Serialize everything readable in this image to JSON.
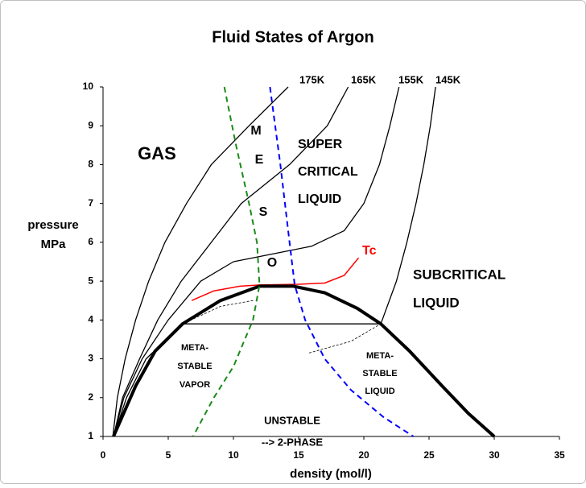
{
  "chart_data": {
    "type": "line",
    "title": "Fluid States of Argon",
    "x_label": "density (mol/l)",
    "y_label": [
      "pressure",
      "MPa"
    ],
    "xlim": [
      0,
      35
    ],
    "xticks": [
      0,
      5,
      10,
      15,
      20,
      25,
      30,
      35
    ],
    "ylim": [
      1,
      10
    ],
    "yticks": [
      1,
      2,
      3,
      4,
      5,
      6,
      7,
      8,
      9,
      10
    ],
    "series": [
      {
        "name": "175K",
        "color": "#000000",
        "width": 1.3,
        "dash": false,
        "x": [
          0.75,
          1.1,
          1.7,
          2.5,
          3.5,
          4.75,
          6.4,
          8.3,
          11.2,
          14.2
        ],
        "y": [
          1,
          2,
          3,
          4,
          5,
          6,
          7,
          8,
          9,
          10
        ]
      },
      {
        "name": "165K",
        "color": "#000000",
        "width": 1.3,
        "dash": false,
        "x": [
          0.8,
          1.5,
          2.8,
          4.2,
          6,
          8.3,
          10.6,
          14.3,
          17.2,
          18.8
        ],
        "y": [
          1,
          2,
          3,
          4,
          5,
          6,
          7,
          8,
          9,
          10
        ]
      },
      {
        "name": "155K",
        "color": "#000000",
        "width": 1.3,
        "dash": false,
        "x": [
          0.8,
          1.6,
          3,
          5,
          7.5,
          10,
          13,
          16,
          18.5,
          20,
          21.2,
          22,
          22.7
        ],
        "y": [
          1,
          2,
          3,
          4,
          5,
          5.5,
          5.7,
          5.9,
          6.3,
          7,
          8,
          9,
          10
        ]
      },
      {
        "name": "145K",
        "color": "#000000",
        "width": 1.3,
        "dash": false,
        "x": [
          0.8,
          1.8,
          3.3,
          6.1,
          21.3,
          22.5,
          23.3,
          24,
          24.6,
          25.1,
          25.5
        ],
        "y": [
          1,
          2,
          3,
          3.9,
          3.9,
          5,
          6,
          7,
          8,
          9,
          10
        ]
      },
      {
        "name": "Tc",
        "color": "#ff0000",
        "width": 1.5,
        "dash": false,
        "x": [
          6.8,
          8.5,
          10.5,
          12,
          15,
          17,
          18.5,
          19.6
        ],
        "y": [
          4.5,
          4.75,
          4.87,
          4.9,
          4.92,
          4.95,
          5.15,
          5.6
        ]
      },
      {
        "color": "#000000",
        "width": 4,
        "dash": false,
        "x": [
          0.8,
          2.5,
          4,
          6.1,
          9,
          12,
          14.6,
          17,
          19.5,
          21.3,
          23.5,
          26,
          28,
          30
        ],
        "y": [
          1,
          2.3,
          3.2,
          3.9,
          4.5,
          4.87,
          4.87,
          4.7,
          4.3,
          3.9,
          3.2,
          2.3,
          1.6,
          1
        ]
      },
      {
        "color": "#1a8a1a",
        "width": 2,
        "dash": true,
        "x": [
          9.3,
          10.2,
          11.2,
          11.8,
          12,
          11.5,
          10,
          8.5,
          6.9
        ],
        "y": [
          10,
          8.5,
          7,
          6,
          4.9,
          4,
          2.8,
          2,
          1
        ]
      },
      {
        "color": "#0000ff",
        "width": 2,
        "dash": true,
        "x": [
          12.8,
          13.6,
          14.3,
          14.7,
          15.5,
          17,
          19,
          21.5,
          23.8
        ],
        "y": [
          10,
          8,
          6,
          4.9,
          4,
          3,
          2.2,
          1.5,
          1
        ]
      },
      {
        "color": "#000000",
        "width": 0.8,
        "dash": true,
        "x": [
          6.1,
          9,
          11.5
        ],
        "y": [
          3.9,
          4.35,
          4.5
        ]
      },
      {
        "color": "#000000",
        "width": 0.8,
        "dash": true,
        "x": [
          15.8,
          19,
          21.3
        ],
        "y": [
          3.15,
          3.45,
          3.9
        ]
      }
    ],
    "annotations": [
      {
        "lines": [
          "GAS"
        ]
      },
      {
        "lines": [
          "M"
        ]
      },
      {
        "lines": [
          "E"
        ]
      },
      {
        "lines": [
          "S"
        ]
      },
      {
        "lines": [
          "O"
        ]
      },
      {
        "lines": [
          "SUPER",
          "CRITICAL",
          "LIQUID"
        ]
      },
      {
        "lines": [
          "SUBCRITICAL",
          "LIQUID"
        ]
      },
      {
        "lines": [
          "META-",
          "STABLE",
          "VAPOR"
        ]
      },
      {
        "lines": [
          "META-",
          "STABLE",
          "LIQUID"
        ]
      },
      {
        "lines": [
          "UNSTABLE",
          "--> 2-PHASE"
        ]
      }
    ]
  }
}
